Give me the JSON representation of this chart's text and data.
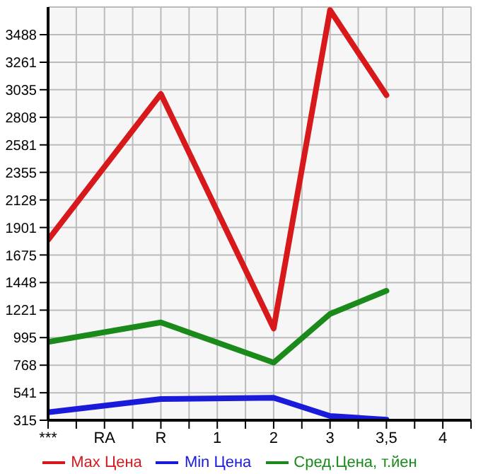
{
  "chart_data": {
    "type": "line",
    "categories": [
      "***",
      "RA",
      "R",
      "1",
      "2",
      "3",
      "3,5",
      "4"
    ],
    "series": [
      {
        "name": "Max Цена",
        "color": "#d7191c",
        "values": [
          1800,
          null,
          3000,
          null,
          1070,
          3690,
          2990,
          null
        ]
      },
      {
        "name": "Min Цена",
        "color": "#1a1adb",
        "values": [
          380,
          null,
          490,
          null,
          500,
          350,
          320,
          null
        ]
      },
      {
        "name": "Сред.Цена, т.йен",
        "color": "#1a8a1a",
        "values": [
          960,
          null,
          1120,
          null,
          790,
          1190,
          1380,
          null
        ]
      }
    ],
    "ylim": [
      315,
      3715
    ],
    "yticks": [
      315,
      541,
      768,
      995,
      1221,
      1448,
      1675,
      1901,
      2128,
      2355,
      2581,
      2808,
      3035,
      3261,
      3488
    ],
    "grid": true,
    "legend": "bottom",
    "marker": "none",
    "line_style": "solid"
  }
}
